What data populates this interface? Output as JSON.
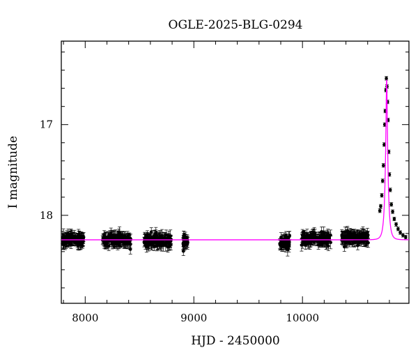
{
  "chart_data": {
    "type": "scatter",
    "title": "OGLE-2025-BLG-0294",
    "xlabel": "HJD - 2450000",
    "ylabel": "I magnitude",
    "xlim": [
      7780,
      10980
    ],
    "ylim": [
      18.97,
      16.08
    ],
    "y_inverted": true,
    "x_ticks": [
      8000,
      9000,
      10000
    ],
    "y_ticks": [
      17,
      18
    ],
    "grid": false,
    "colors": {
      "points": "#000000",
      "model": "#ff00ff",
      "frame": "#000000"
    },
    "baseline_mag": 18.27,
    "peak": {
      "t0": 10775,
      "mag": 16.49,
      "tE": 25
    },
    "observing_seasons": [
      {
        "x_range": [
          7785,
          7990
        ],
        "mag": 18.27,
        "scatter": 0.05
      },
      {
        "x_range": [
          8160,
          8420
        ],
        "mag": 18.27,
        "scatter": 0.05
      },
      {
        "x_range": [
          8540,
          8790
        ],
        "mag": 18.28,
        "scatter": 0.05
      },
      {
        "x_range": [
          8900,
          8945
        ],
        "mag": 18.3,
        "scatter": 0.07
      },
      {
        "x_range": [
          9790,
          9885
        ],
        "mag": 18.3,
        "scatter": 0.06
      },
      {
        "x_range": [
          9990,
          10260
        ],
        "mag": 18.26,
        "scatter": 0.05
      },
      {
        "x_range": [
          10360,
          10610
        ],
        "mag": 18.25,
        "scatter": 0.05
      }
    ],
    "event_points": [
      {
        "x": 10712,
        "y": 17.95
      },
      {
        "x": 10720,
        "y": 17.9
      },
      {
        "x": 10730,
        "y": 17.78
      },
      {
        "x": 10738,
        "y": 17.62
      },
      {
        "x": 10745,
        "y": 17.45
      },
      {
        "x": 10752,
        "y": 17.22
      },
      {
        "x": 10757,
        "y": 17.0
      },
      {
        "x": 10762,
        "y": 16.85
      },
      {
        "x": 10768,
        "y": 16.62
      },
      {
        "x": 10772,
        "y": 16.49
      },
      {
        "x": 10778,
        "y": 16.58
      },
      {
        "x": 10783,
        "y": 16.75
      },
      {
        "x": 10788,
        "y": 16.95
      },
      {
        "x": 10794,
        "y": 17.3
      },
      {
        "x": 10800,
        "y": 17.55
      },
      {
        "x": 10808,
        "y": 17.72
      },
      {
        "x": 10818,
        "y": 17.88
      },
      {
        "x": 10830,
        "y": 17.96
      },
      {
        "x": 10845,
        "y": 18.04
      },
      {
        "x": 10862,
        "y": 18.1
      },
      {
        "x": 10880,
        "y": 18.15
      },
      {
        "x": 10900,
        "y": 18.19
      },
      {
        "x": 10925,
        "y": 18.22
      },
      {
        "x": 10950,
        "y": 18.24
      }
    ]
  }
}
